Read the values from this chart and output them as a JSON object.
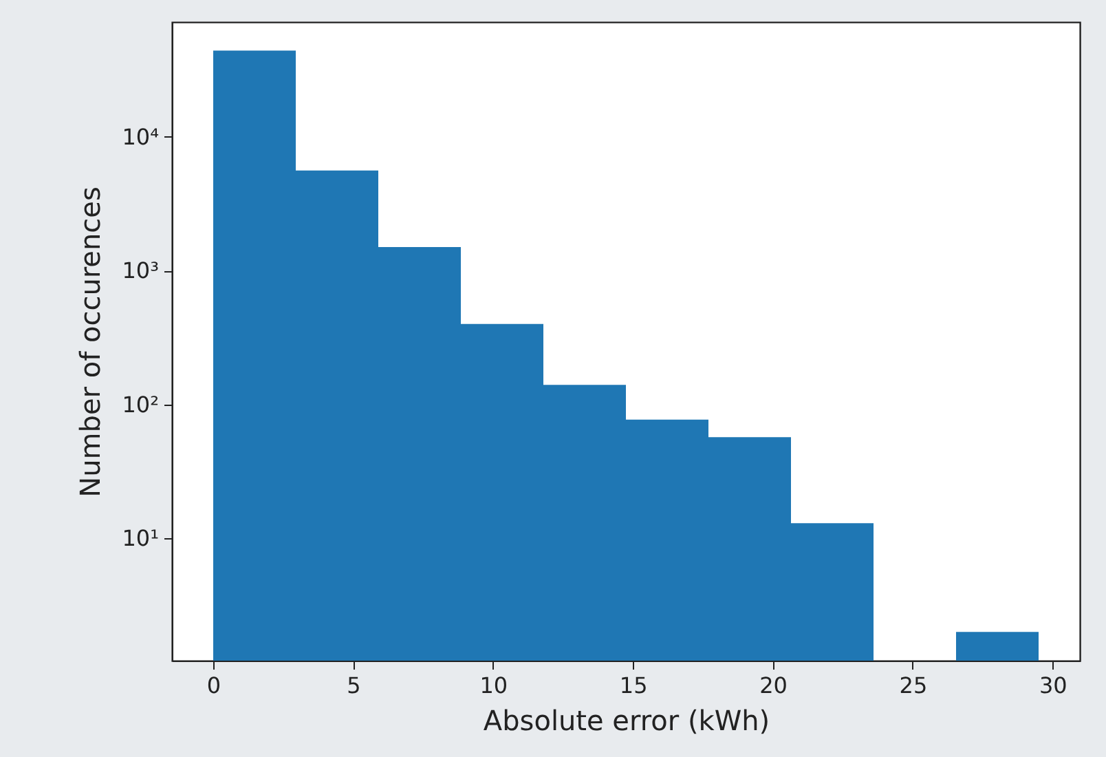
{
  "chart_data": {
    "type": "histogram",
    "xlabel": "Absolute error (kWh)",
    "ylabel": "Number of occurences",
    "bins": [
      0,
      2.95,
      5.9,
      8.85,
      11.8,
      14.75,
      17.7,
      20.65,
      23.6,
      26.55,
      29.5
    ],
    "values": [
      44000,
      5600,
      1500,
      400,
      140,
      77,
      57,
      13,
      null,
      2
    ],
    "color": "#1f77b4",
    "log": "y",
    "xlim": [
      -1.475,
      30.975
    ],
    "xticks": [
      0,
      5,
      10,
      15,
      20,
      25,
      30
    ],
    "ylim": [
      1.22,
      72000
    ],
    "yticks": [
      {
        "value": 10,
        "label": "10¹"
      },
      {
        "value": 100,
        "label": "10²"
      },
      {
        "value": 1000,
        "label": "10³"
      },
      {
        "value": 10000,
        "label": "10⁴"
      }
    ]
  }
}
